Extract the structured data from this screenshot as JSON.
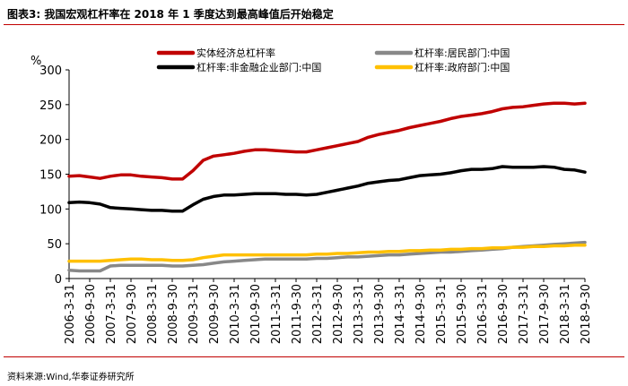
{
  "header": {
    "title": "图表3:  我国宏观杠杆率在 2018 年 1 季度达到最高峰值后开始稳定"
  },
  "footer": {
    "source": "资料来源:Wind,华泰证券研究所"
  },
  "colors": {
    "rule": "#c00000",
    "series": [
      "#c00000",
      "#888888",
      "#000000",
      "#ffc000"
    ]
  },
  "chart_data": {
    "type": "line",
    "title": "",
    "xlabel": "",
    "ylabel": "",
    "unit": "%",
    "ylim": [
      0,
      300
    ],
    "yticks": [
      0,
      50,
      100,
      150,
      200,
      250,
      300
    ],
    "grid": false,
    "legend_position": "top",
    "x": [
      "2006-3-31",
      "2006-6-30",
      "2006-9-30",
      "2006-12-31",
      "2007-3-31",
      "2007-6-30",
      "2007-9-30",
      "2007-12-31",
      "2008-3-31",
      "2008-6-30",
      "2008-9-30",
      "2008-12-31",
      "2009-3-31",
      "2009-6-30",
      "2009-9-30",
      "2009-12-31",
      "2010-3-31",
      "2010-6-30",
      "2010-9-30",
      "2010-12-31",
      "2011-3-31",
      "2011-6-30",
      "2011-9-30",
      "2011-12-31",
      "2012-3-31",
      "2012-6-30",
      "2012-9-30",
      "2012-12-31",
      "2013-3-31",
      "2013-6-30",
      "2013-9-30",
      "2013-12-31",
      "2014-3-31",
      "2014-6-30",
      "2014-9-30",
      "2014-12-31",
      "2015-3-31",
      "2015-6-30",
      "2015-9-30",
      "2015-12-31",
      "2016-3-31",
      "2016-6-30",
      "2016-9-30",
      "2016-12-31",
      "2017-3-31",
      "2017-6-30",
      "2017-9-30",
      "2017-12-31",
      "2018-3-31",
      "2018-6-30",
      "2018-9-30"
    ],
    "x_tick_labels": [
      "2006-3-31",
      "2006-9-30",
      "2007-3-31",
      "2007-9-30",
      "2008-3-31",
      "2008-9-30",
      "2009-3-31",
      "2009-9-30",
      "2010-3-31",
      "2010-9-30",
      "2011-3-31",
      "2011-9-30",
      "2012-3-31",
      "2012-9-30",
      "2013-3-31",
      "2013-9-30",
      "2014-3-31",
      "2014-9-30",
      "2015-3-31",
      "2015-9-30",
      "2016-3-31",
      "2016-9-30",
      "2017-3-31",
      "2017-9-30",
      "2018-3-31",
      "2018-9-30"
    ],
    "series": [
      {
        "name": "实体经济总杠杆率",
        "color": "#c00000",
        "values": [
          147,
          148,
          146,
          144,
          147,
          149,
          149,
          147,
          146,
          145,
          143,
          143,
          155,
          170,
          176,
          178,
          180,
          183,
          185,
          185,
          184,
          183,
          182,
          182,
          185,
          188,
          191,
          194,
          197,
          203,
          207,
          210,
          213,
          217,
          220,
          223,
          226,
          230,
          233,
          235,
          237,
          240,
          244,
          246,
          247,
          249,
          251,
          252,
          252,
          251,
          252
        ]
      },
      {
        "name": "杠杆率:居民部门:中国",
        "color": "#888888",
        "values": [
          12,
          11,
          11,
          11,
          18,
          19,
          19,
          19,
          19,
          19,
          18,
          18,
          19,
          20,
          22,
          24,
          25,
          26,
          27,
          28,
          28,
          28,
          28,
          28,
          29,
          29,
          30,
          31,
          31,
          32,
          33,
          34,
          34,
          35,
          36,
          37,
          38,
          38,
          39,
          40,
          41,
          42,
          43,
          45,
          46,
          47,
          48,
          49,
          50,
          51,
          52
        ]
      },
      {
        "name": "杠杆率:非金融企业部门:中国",
        "color": "#000000",
        "values": [
          109,
          110,
          109,
          107,
          102,
          101,
          100,
          99,
          98,
          98,
          97,
          97,
          106,
          114,
          118,
          120,
          120,
          121,
          122,
          122,
          122,
          121,
          121,
          120,
          121,
          124,
          127,
          130,
          133,
          137,
          139,
          141,
          142,
          145,
          148,
          149,
          150,
          152,
          155,
          157,
          157,
          158,
          161,
          160,
          160,
          160,
          161,
          160,
          157,
          156,
          153
        ]
      },
      {
        "name": "杠杆率:政府部门:中国",
        "color": "#ffc000",
        "values": [
          25,
          25,
          25,
          25,
          26,
          27,
          28,
          28,
          27,
          27,
          26,
          26,
          27,
          30,
          32,
          34,
          34,
          34,
          34,
          34,
          34,
          34,
          34,
          34,
          35,
          35,
          36,
          36,
          37,
          38,
          38,
          39,
          39,
          40,
          40,
          41,
          41,
          42,
          42,
          43,
          43,
          44,
          44,
          45,
          45,
          46,
          46,
          47,
          47,
          48,
          48
        ]
      }
    ]
  }
}
